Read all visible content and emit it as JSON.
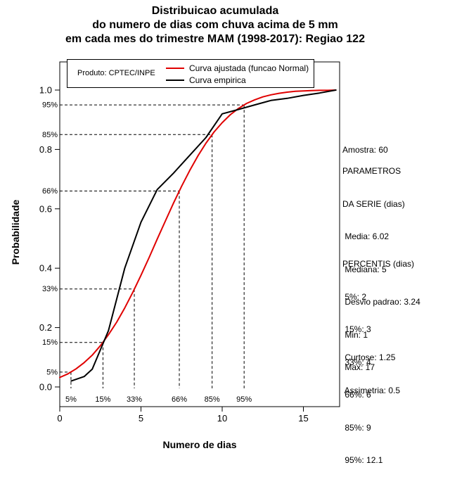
{
  "title": {
    "line1": "Distribuicao acumulada",
    "line2": "do numero de dias com chuva acima de 5 mm",
    "line3": "em cada mes do trimestre MAM (1998-2017): Regiao 122"
  },
  "legend": {
    "product": "Produto: CPTEC/INPE",
    "items": [
      {
        "label": "Curva ajustada (funcao Normal)",
        "color": "#e00000"
      },
      {
        "label": "Curva empirica",
        "color": "#000000"
      }
    ]
  },
  "axes": {
    "x_label": "Numero de dias",
    "y_label": "Probabilidade"
  },
  "side_panel": {
    "amostra": "Amostra: 60",
    "parametros": [
      "PARAMETROS",
      "DA SERIE (dias)",
      " Media: 6.02",
      " Mediana: 5",
      " Desvio padrao: 3.24",
      " Min: 1",
      " Max: 17"
    ],
    "percentis": [
      "PERCENTIS (dias)",
      " 5%: 2",
      " 15%: 3",
      " 33%: 4",
      " 66%: 6",
      " 85%: 9",
      " 95%: 12.1"
    ],
    "momentos": [
      " Curtose: 1.25",
      " Assimetria: 0.5"
    ]
  },
  "chart_data": {
    "type": "line",
    "title": "Distribuicao acumulada do numero de dias com chuva acima de 5 mm em cada mes do trimestre MAM (1998-2017): Regiao 122",
    "xlabel": "Numero de dias",
    "ylabel": "Probabilidade",
    "xlim": [
      0,
      17.2
    ],
    "ylim": [
      0,
      1.06
    ],
    "x_ticks": [
      0,
      5,
      10,
      15
    ],
    "y_ticks": [
      0,
      0.2,
      0.4,
      0.6,
      0.8,
      1.0
    ],
    "y_tick_labels": [
      "0.0",
      "0.2",
      "0.4",
      "0.6",
      "0.8",
      "1.0"
    ],
    "grid": false,
    "legend_position": "top",
    "series": [
      {
        "name": "Curva ajustada (funcao Normal)",
        "color": "#e00000",
        "points": [
          [
            0,
            0.032
          ],
          [
            0.5,
            0.044
          ],
          [
            1,
            0.061
          ],
          [
            1.5,
            0.082
          ],
          [
            2,
            0.107
          ],
          [
            2.5,
            0.139
          ],
          [
            3,
            0.176
          ],
          [
            3.5,
            0.218
          ],
          [
            4,
            0.266
          ],
          [
            4.5,
            0.319
          ],
          [
            5,
            0.376
          ],
          [
            5.5,
            0.436
          ],
          [
            6,
            0.498
          ],
          [
            6.5,
            0.559
          ],
          [
            7,
            0.619
          ],
          [
            7.5,
            0.676
          ],
          [
            8,
            0.729
          ],
          [
            8.5,
            0.778
          ],
          [
            9,
            0.821
          ],
          [
            9.5,
            0.859
          ],
          [
            10,
            0.89
          ],
          [
            10.5,
            0.917
          ],
          [
            11,
            0.938
          ],
          [
            11.5,
            0.955
          ],
          [
            12,
            0.967
          ],
          [
            12.5,
            0.977
          ],
          [
            13,
            0.984
          ],
          [
            13.5,
            0.989
          ],
          [
            14,
            0.993
          ],
          [
            14.5,
            0.996
          ],
          [
            15,
            0.997
          ],
          [
            15.5,
            0.998
          ],
          [
            16,
            0.999
          ],
          [
            16.5,
            0.999
          ],
          [
            17,
            1.0
          ]
        ]
      },
      {
        "name": "Curva empirica",
        "color": "#000000",
        "points": [
          [
            0.7,
            0.02
          ],
          [
            1.5,
            0.035
          ],
          [
            2,
            0.06
          ],
          [
            3,
            0.19
          ],
          [
            4,
            0.4
          ],
          [
            5,
            0.555
          ],
          [
            6,
            0.665
          ],
          [
            7,
            0.72
          ],
          [
            8,
            0.78
          ],
          [
            9,
            0.84
          ],
          [
            10,
            0.92
          ],
          [
            10.7,
            0.93
          ],
          [
            12,
            0.95
          ],
          [
            13,
            0.965
          ],
          [
            14,
            0.972
          ],
          [
            15,
            0.982
          ],
          [
            16,
            0.99
          ],
          [
            17,
            1.0
          ]
        ]
      }
    ],
    "percentile_guides": [
      {
        "label": "5%",
        "p": 0.05,
        "x_days": 0.69
      },
      {
        "label": "15%",
        "p": 0.15,
        "x_days": 2.66
      },
      {
        "label": "33%",
        "p": 0.33,
        "x_days": 4.59
      },
      {
        "label": "66%",
        "p": 0.66,
        "x_days": 7.36
      },
      {
        "label": "85%",
        "p": 0.85,
        "x_days": 9.38
      },
      {
        "label": "95%",
        "p": 0.95,
        "x_days": 11.35
      }
    ],
    "stats": {
      "amostra": 60,
      "media": 6.02,
      "mediana": 5,
      "desvio_padrao": 3.24,
      "min": 1,
      "max": 17,
      "percentis_dias": {
        "5%": 2,
        "15%": 3,
        "33%": 4,
        "66%": 6,
        "85%": 9,
        "95%": 12.1
      },
      "curtose": 1.25,
      "assimetria": 0.5
    }
  }
}
